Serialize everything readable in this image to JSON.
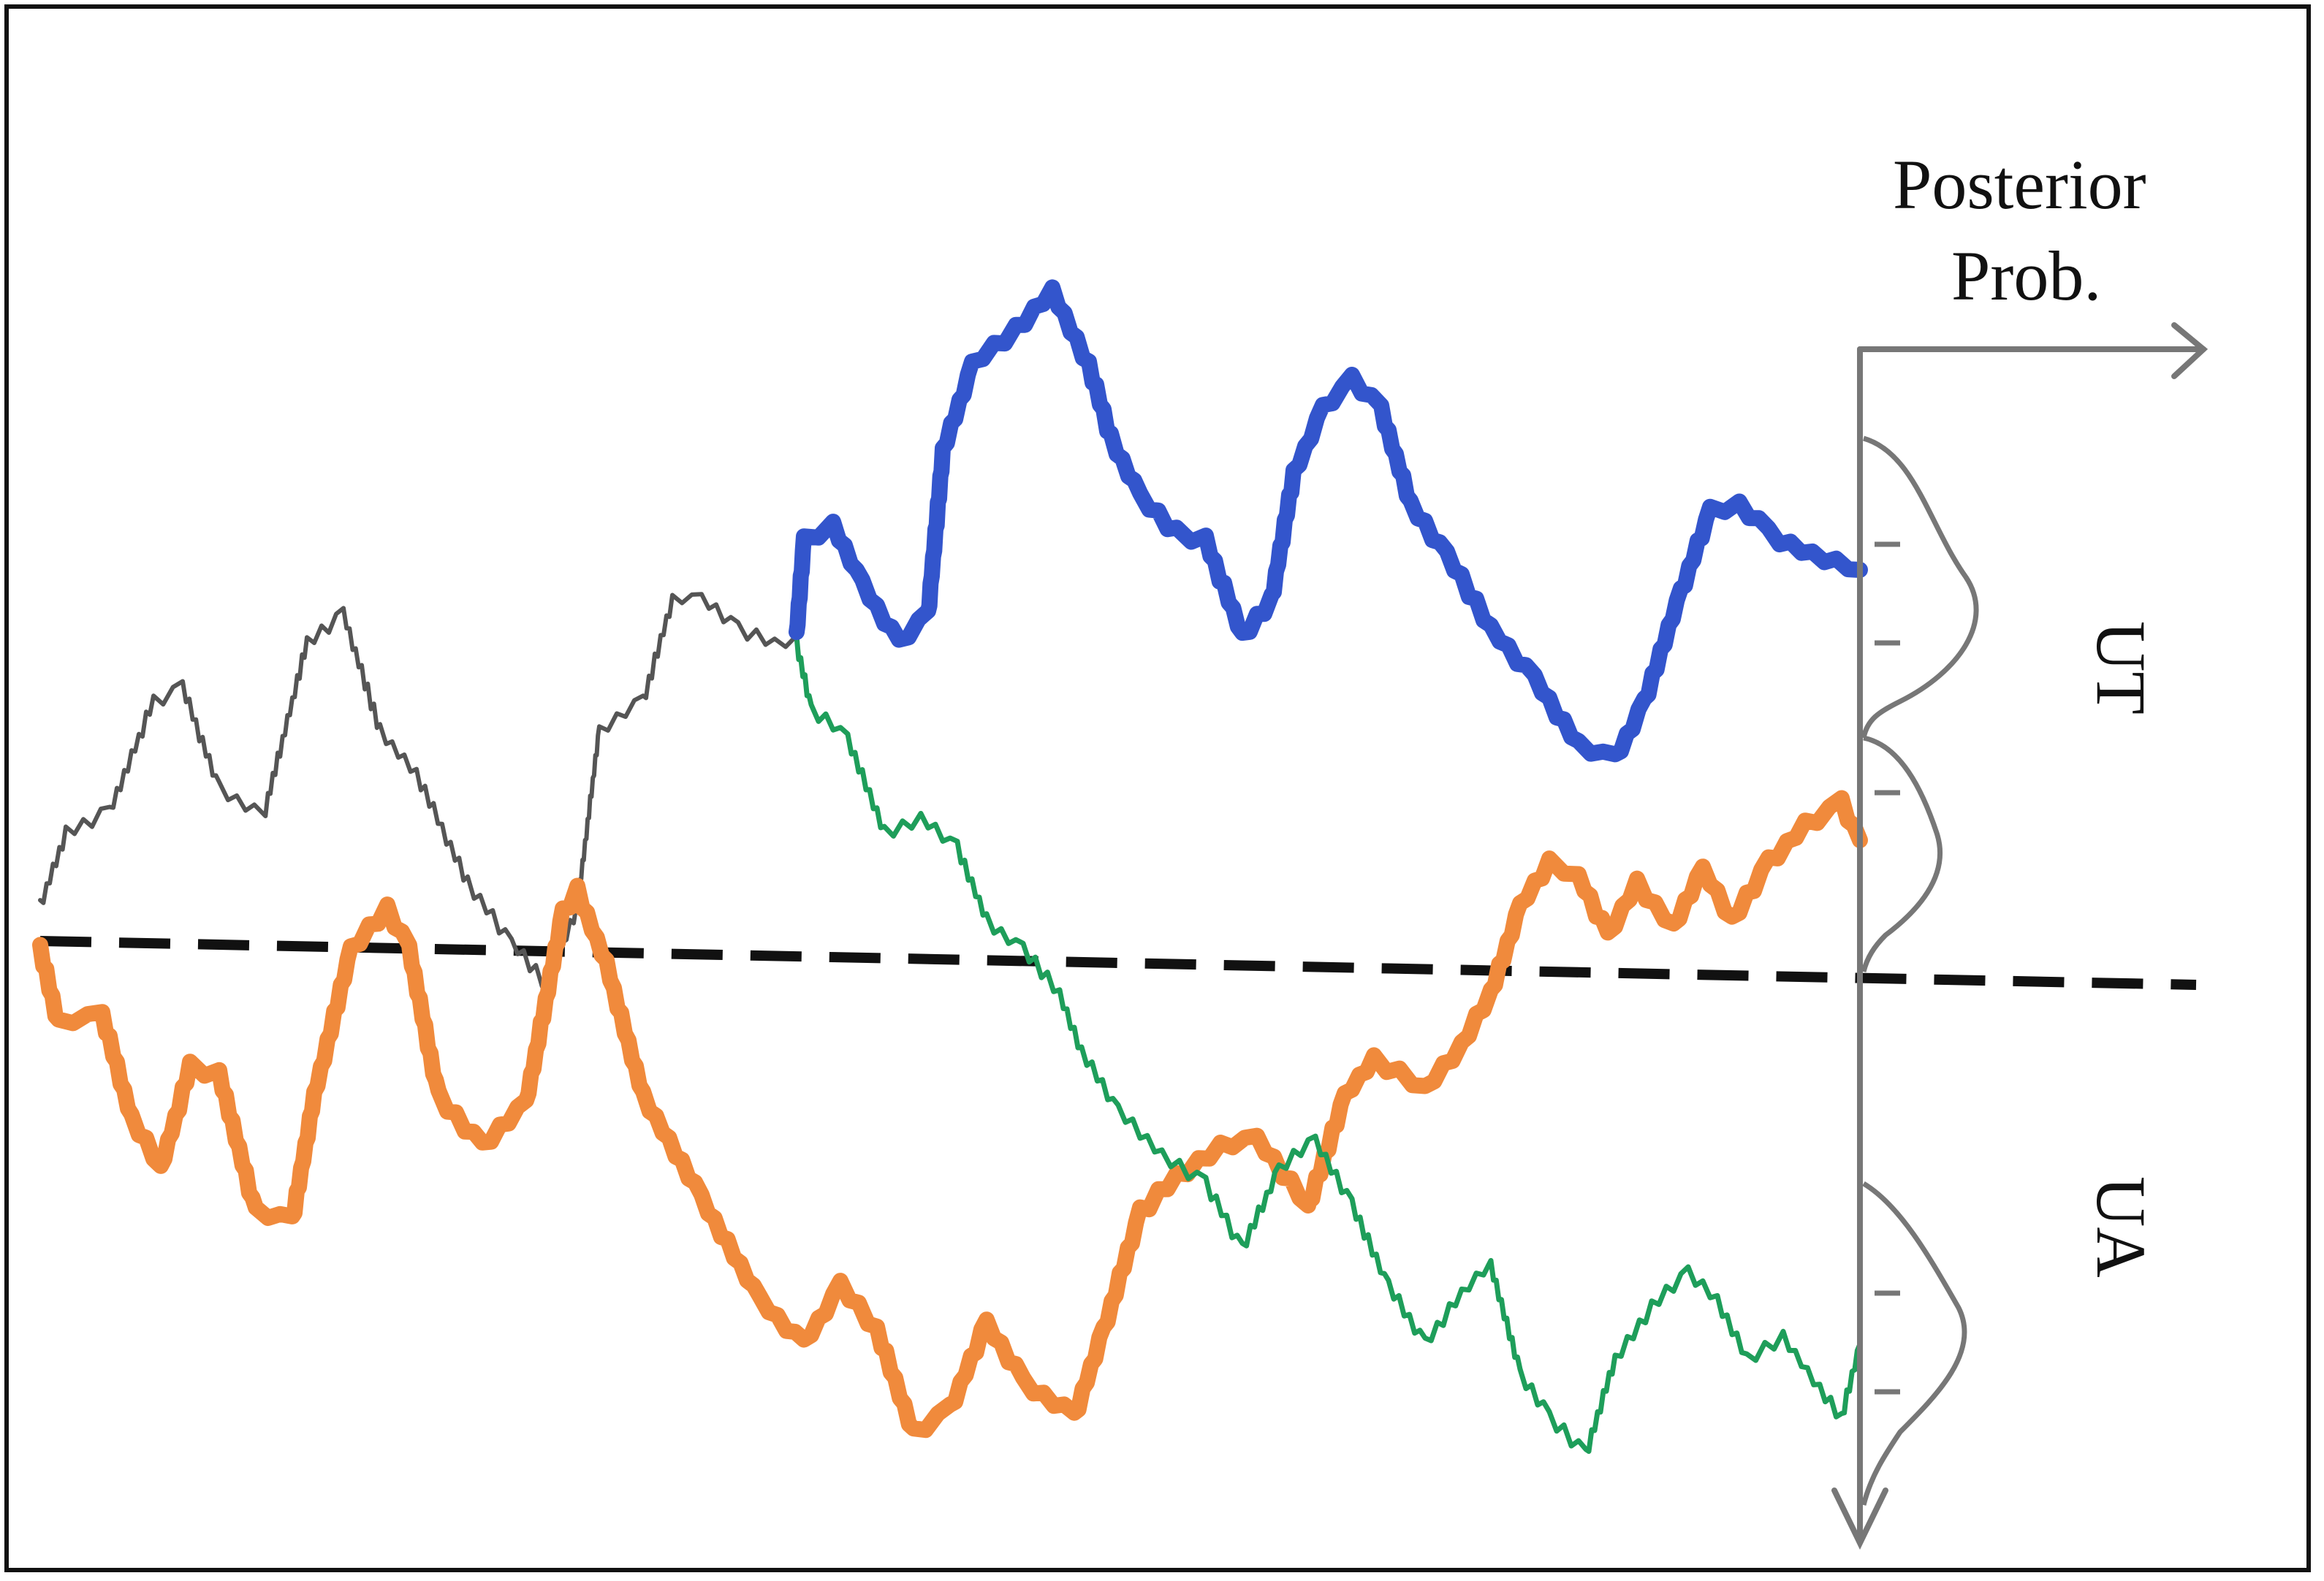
{
  "labels": {
    "axis_title_line1": "Posterior",
    "axis_title_line2": "Prob.",
    "upper_label": "UT",
    "lower_label": "UA"
  },
  "colors": {
    "shared_path": "#555555",
    "blue_path": "#3355cc",
    "orange_path": "#f08a3c",
    "green_path": "#1e9e5a",
    "axis": "#777777",
    "threshold": "#111111"
  }
}
